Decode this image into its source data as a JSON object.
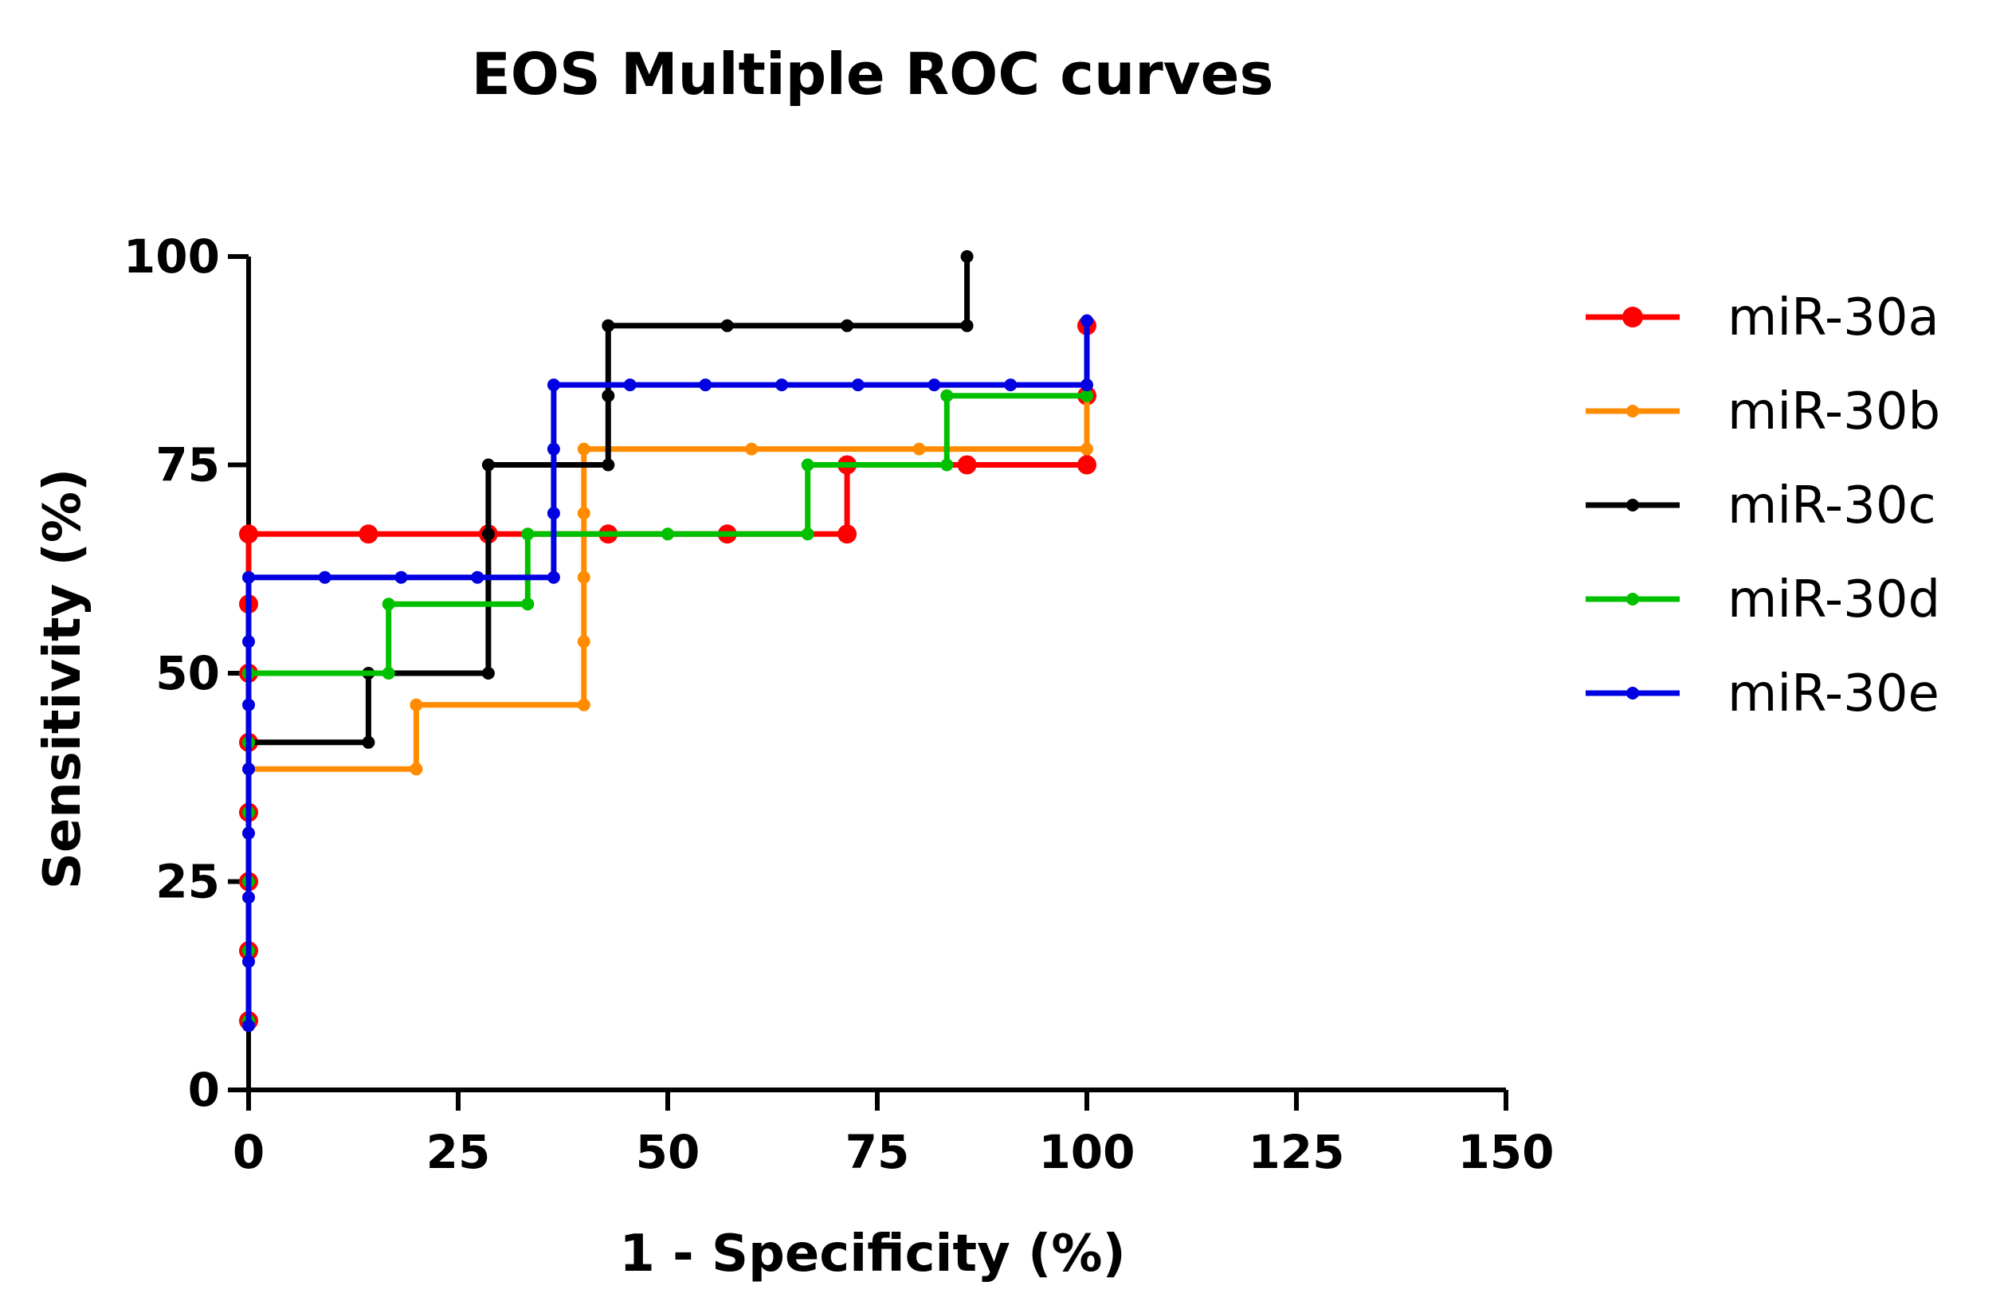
{
  "chart_data": {
    "type": "line",
    "title": "EOS Multiple ROC curves",
    "xlabel": "1 - Specificity (%)",
    "ylabel": "Sensitivity (%)",
    "xlim": [
      0,
      150
    ],
    "ylim": [
      0,
      100
    ],
    "xticks": [
      "0",
      "25",
      "50",
      "75",
      "100",
      "125",
      "150"
    ],
    "yticks": [
      "0",
      "25",
      "50",
      "75",
      "100"
    ],
    "grid": false,
    "legend_position": "right",
    "series": [
      {
        "name": "miR-30a",
        "color": "#ff0000",
        "marker": "large",
        "points": [
          [
            0,
            8.3
          ],
          [
            0,
            16.7
          ],
          [
            0,
            25.0
          ],
          [
            0,
            33.3
          ],
          [
            0,
            41.7
          ],
          [
            0,
            50.0
          ],
          [
            0,
            58.3
          ],
          [
            0,
            66.7
          ],
          [
            14.3,
            66.7
          ],
          [
            28.6,
            66.7
          ],
          [
            42.9,
            66.7
          ],
          [
            57.1,
            66.7
          ],
          [
            71.4,
            66.7
          ],
          [
            71.4,
            75.0
          ],
          [
            85.7,
            75.0
          ],
          [
            100,
            75.0
          ],
          [
            100,
            83.3
          ],
          [
            100,
            91.7
          ]
        ]
      },
      {
        "name": "miR-30b",
        "color": "#ff8c00",
        "marker": "small",
        "points": [
          [
            0,
            7.7
          ],
          [
            0,
            15.4
          ],
          [
            0,
            23.1
          ],
          [
            0,
            30.8
          ],
          [
            0,
            38.5
          ],
          [
            20,
            38.5
          ],
          [
            20,
            46.2
          ],
          [
            40,
            46.2
          ],
          [
            40,
            53.8
          ],
          [
            40,
            61.5
          ],
          [
            40,
            69.2
          ],
          [
            40,
            76.9
          ],
          [
            60,
            76.9
          ],
          [
            80,
            76.9
          ],
          [
            100,
            76.9
          ],
          [
            100,
            83.3
          ]
        ]
      },
      {
        "name": "miR-30c",
        "color": "#000000",
        "marker": "small",
        "points": [
          [
            0,
            8.3
          ],
          [
            0,
            16.7
          ],
          [
            0,
            25.0
          ],
          [
            0,
            33.3
          ],
          [
            0,
            41.7
          ],
          [
            14.3,
            41.7
          ],
          [
            14.3,
            50.0
          ],
          [
            28.6,
            50.0
          ],
          [
            28.6,
            66.7
          ],
          [
            28.6,
            75.0
          ],
          [
            42.9,
            75.0
          ],
          [
            42.9,
            83.3
          ],
          [
            42.9,
            91.7
          ],
          [
            57.1,
            91.7
          ],
          [
            71.4,
            91.7
          ],
          [
            85.7,
            91.7
          ],
          [
            85.7,
            100
          ]
        ]
      },
      {
        "name": "miR-30d",
        "color": "#00c000",
        "marker": "small",
        "points": [
          [
            0,
            8.3
          ],
          [
            0,
            16.7
          ],
          [
            0,
            25.0
          ],
          [
            0,
            33.3
          ],
          [
            0,
            41.7
          ],
          [
            0,
            50.0
          ],
          [
            16.7,
            50.0
          ],
          [
            16.7,
            58.3
          ],
          [
            33.3,
            58.3
          ],
          [
            33.3,
            66.7
          ],
          [
            50,
            66.7
          ],
          [
            66.7,
            66.7
          ],
          [
            66.7,
            75.0
          ],
          [
            83.3,
            75.0
          ],
          [
            83.3,
            83.3
          ],
          [
            100,
            83.3
          ]
        ]
      },
      {
        "name": "miR-30e",
        "color": "#0000e0",
        "marker": "small",
        "points": [
          [
            0,
            7.7
          ],
          [
            0,
            15.4
          ],
          [
            0,
            23.1
          ],
          [
            0,
            30.8
          ],
          [
            0,
            38.5
          ],
          [
            0,
            46.2
          ],
          [
            0,
            53.8
          ],
          [
            0,
            61.5
          ],
          [
            9.1,
            61.5
          ],
          [
            18.2,
            61.5
          ],
          [
            27.3,
            61.5
          ],
          [
            36.4,
            61.5
          ],
          [
            36.4,
            69.2
          ],
          [
            36.4,
            76.9
          ],
          [
            36.4,
            84.6
          ],
          [
            45.5,
            84.6
          ],
          [
            54.5,
            84.6
          ],
          [
            63.6,
            84.6
          ],
          [
            72.7,
            84.6
          ],
          [
            81.8,
            84.6
          ],
          [
            90.9,
            84.6
          ],
          [
            100,
            84.6
          ],
          [
            100,
            92.3
          ]
        ]
      }
    ]
  }
}
